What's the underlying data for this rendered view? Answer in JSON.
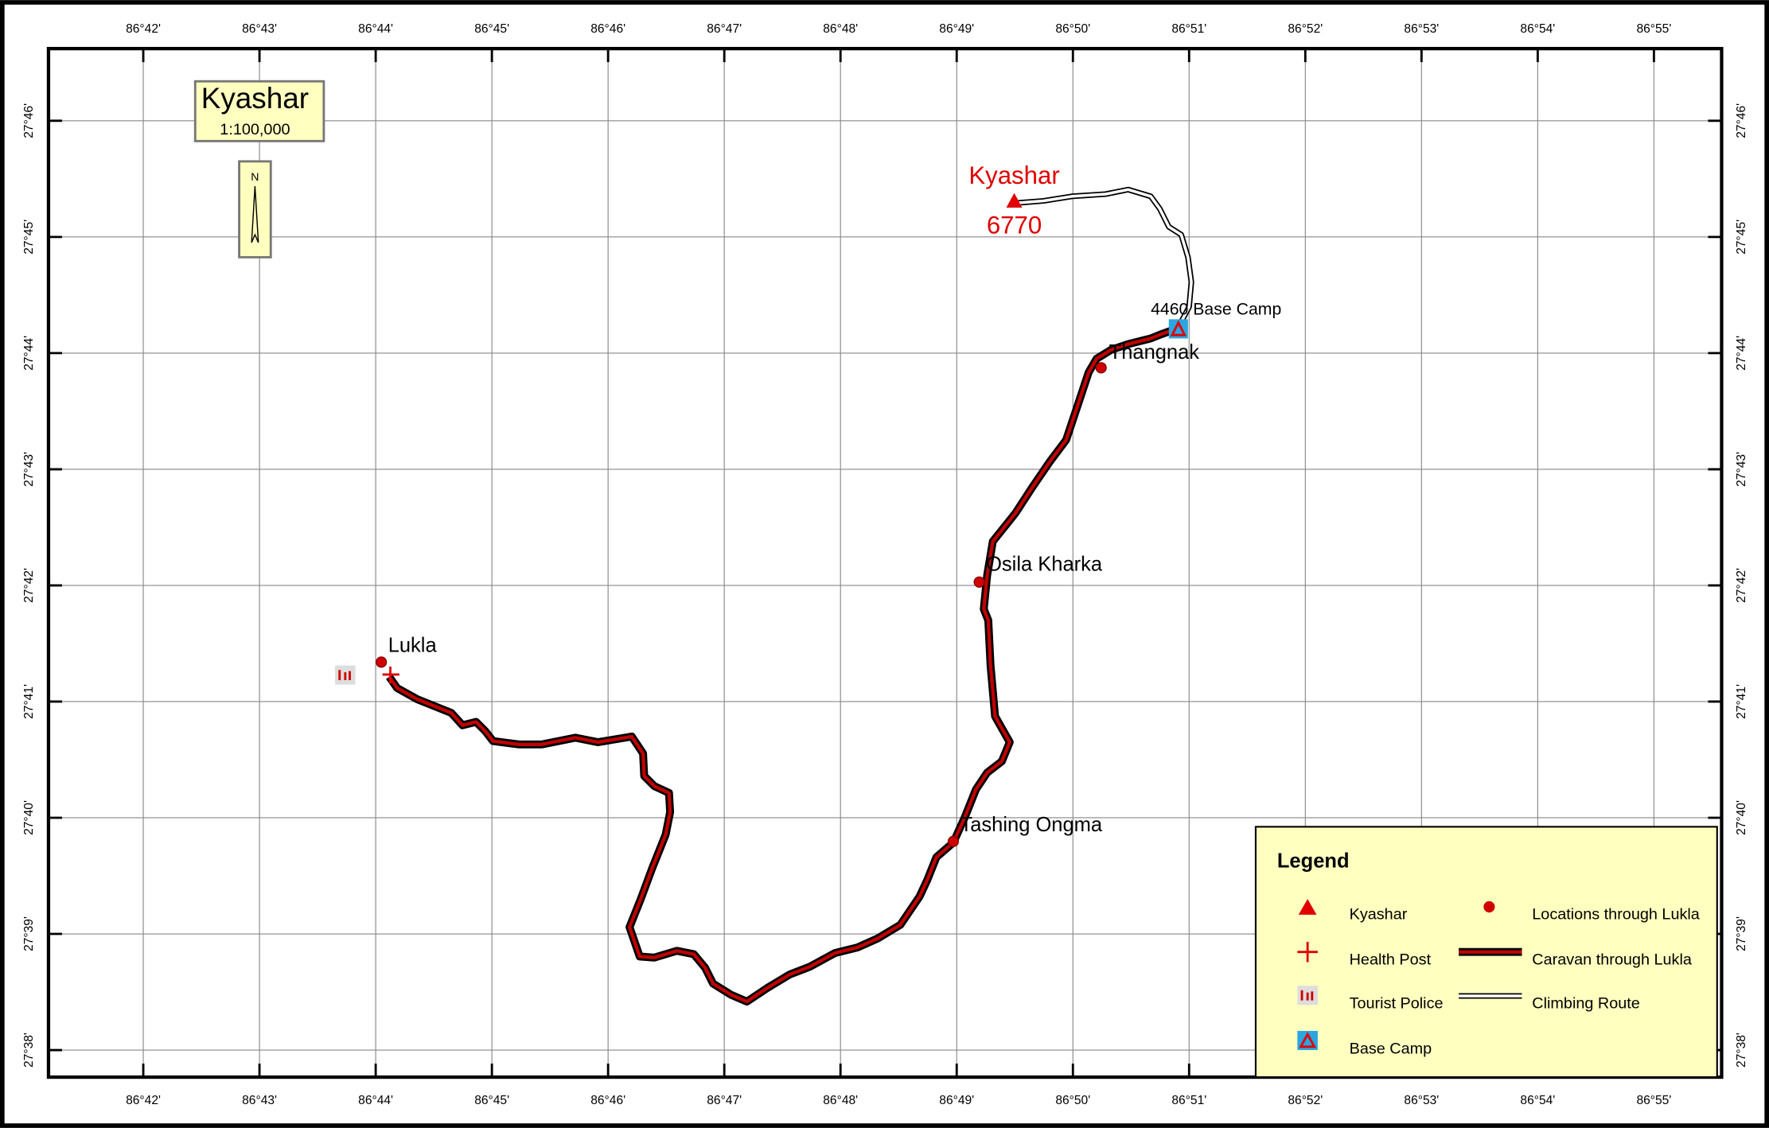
{
  "title_box": {
    "title": "Kyashar",
    "scale": "1:100,000"
  },
  "north_arrow": {
    "label": "N"
  },
  "graticule": {
    "longitudes": [
      "86°42'",
      "86°43'",
      "86°44'",
      "86°45'",
      "86°46'",
      "86°47'",
      "86°48'",
      "86°49'",
      "86°50'",
      "86°51'",
      "86°52'",
      "86°53'",
      "86°54'",
      "86°55'"
    ],
    "latitudes": [
      "27°46'",
      "27°45'",
      "27°44'",
      "27°43'",
      "27°42'",
      "27°41'",
      "27°40'",
      "27°39'",
      "27°38'"
    ]
  },
  "places": {
    "peak": "Kyashar",
    "peak_elevation": "6770",
    "base_camp": "4460 Base Camp",
    "thangnak": "Thangnak",
    "osila_kharka": "Osila Kharka",
    "tashing_ongma": "Tashing Ongma",
    "lukla": "Lukla"
  },
  "legend": {
    "title": "Legend",
    "items": [
      "Kyashar",
      "Health Post",
      "Tourist Police",
      "Base Camp",
      "Locations through Lukla",
      "Caravan through Lukla",
      "Climbing Route"
    ]
  }
}
